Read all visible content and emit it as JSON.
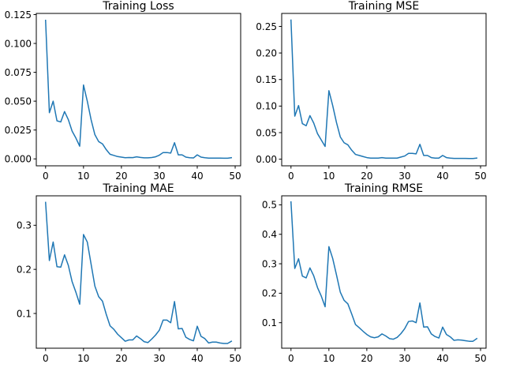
{
  "chart_data": [
    {
      "type": "line",
      "title": "Training Loss",
      "xlim": [
        -2.45,
        51.45
      ],
      "ylim": [
        -0.006,
        0.126
      ],
      "xticks": [
        0,
        10,
        20,
        30,
        40,
        50
      ],
      "xtick_labels": [
        "0",
        "10",
        "20",
        "30",
        "40",
        "50"
      ],
      "yticks": [
        0.0,
        0.025,
        0.05,
        0.075,
        0.1,
        0.125
      ],
      "ytick_labels": [
        "0.000",
        "0.025",
        "0.050",
        "0.075",
        "0.100",
        "0.125"
      ],
      "color": "#1f77b4",
      "x": [
        0,
        1,
        2,
        3,
        4,
        5,
        6,
        7,
        8,
        9,
        10,
        11,
        12,
        13,
        14,
        15,
        16,
        17,
        18,
        19,
        20,
        21,
        22,
        23,
        24,
        25,
        26,
        27,
        28,
        29,
        30,
        31,
        32,
        33,
        34,
        35,
        36,
        37,
        38,
        39,
        40,
        41,
        42,
        43,
        44,
        45,
        46,
        47,
        48,
        49
      ],
      "y": [
        0.12,
        0.04,
        0.05,
        0.033,
        0.032,
        0.041,
        0.034,
        0.024,
        0.018,
        0.011,
        0.064,
        0.05,
        0.034,
        0.021,
        0.015,
        0.013,
        0.008,
        0.004,
        0.003,
        0.002,
        0.0015,
        0.001,
        0.0012,
        0.0011,
        0.0018,
        0.0013,
        0.0009,
        0.0009,
        0.0012,
        0.0018,
        0.0032,
        0.0055,
        0.0055,
        0.005,
        0.014,
        0.0035,
        0.0035,
        0.0015,
        0.001,
        0.0008,
        0.0035,
        0.0015,
        0.001,
        0.0007,
        0.0007,
        0.0007,
        0.0007,
        0.0006,
        0.0006,
        0.001
      ]
    },
    {
      "type": "line",
      "title": "Training MSE",
      "xlim": [
        -2.45,
        51.45
      ],
      "ylim": [
        -0.0125,
        0.2745
      ],
      "xticks": [
        0,
        10,
        20,
        30,
        40,
        50
      ],
      "xtick_labels": [
        "0",
        "10",
        "20",
        "30",
        "40",
        "50"
      ],
      "yticks": [
        0.0,
        0.05,
        0.1,
        0.15,
        0.2,
        0.25
      ],
      "ytick_labels": [
        "0.00",
        "0.05",
        "0.10",
        "0.15",
        "0.20",
        "0.25"
      ],
      "color": "#1f77b4",
      "x": [
        0,
        1,
        2,
        3,
        4,
        5,
        6,
        7,
        8,
        9,
        10,
        11,
        12,
        13,
        14,
        15,
        16,
        17,
        18,
        19,
        20,
        21,
        22,
        23,
        24,
        25,
        26,
        27,
        28,
        29,
        30,
        31,
        32,
        33,
        34,
        35,
        36,
        37,
        38,
        39,
        40,
        41,
        42,
        43,
        44,
        45,
        46,
        47,
        48,
        49
      ],
      "y": [
        0.262,
        0.081,
        0.101,
        0.067,
        0.063,
        0.082,
        0.068,
        0.048,
        0.036,
        0.024,
        0.129,
        0.101,
        0.069,
        0.042,
        0.031,
        0.027,
        0.017,
        0.009,
        0.007,
        0.005,
        0.003,
        0.002,
        0.002,
        0.002,
        0.003,
        0.002,
        0.002,
        0.002,
        0.002,
        0.004,
        0.006,
        0.011,
        0.011,
        0.01,
        0.028,
        0.007,
        0.007,
        0.003,
        0.002,
        0.002,
        0.007,
        0.003,
        0.002,
        0.0015,
        0.0015,
        0.0015,
        0.0015,
        0.0012,
        0.0012,
        0.002
      ]
    },
    {
      "type": "line",
      "title": "Training MAE",
      "xlim": [
        -2.45,
        51.45
      ],
      "ylim": [
        0.0212,
        0.3668
      ],
      "xticks": [
        0,
        10,
        20,
        30,
        40,
        50
      ],
      "xtick_labels": [
        "0",
        "10",
        "20",
        "30",
        "40",
        "50"
      ],
      "yticks": [
        0.1,
        0.2,
        0.3
      ],
      "ytick_labels": [
        "0.1",
        "0.2",
        "0.3"
      ],
      "color": "#1f77b4",
      "x": [
        0,
        1,
        2,
        3,
        4,
        5,
        6,
        7,
        8,
        9,
        10,
        11,
        12,
        13,
        14,
        15,
        16,
        17,
        18,
        19,
        20,
        21,
        22,
        23,
        24,
        25,
        26,
        27,
        28,
        29,
        30,
        31,
        32,
        33,
        34,
        35,
        36,
        37,
        38,
        39,
        40,
        41,
        42,
        43,
        44,
        45,
        46,
        47,
        48,
        49
      ],
      "y": [
        0.352,
        0.22,
        0.262,
        0.206,
        0.205,
        0.233,
        0.209,
        0.172,
        0.148,
        0.121,
        0.279,
        0.262,
        0.212,
        0.162,
        0.138,
        0.128,
        0.098,
        0.072,
        0.064,
        0.053,
        0.045,
        0.037,
        0.04,
        0.04,
        0.049,
        0.043,
        0.036,
        0.034,
        0.042,
        0.051,
        0.062,
        0.085,
        0.085,
        0.079,
        0.127,
        0.065,
        0.066,
        0.046,
        0.041,
        0.038,
        0.071,
        0.048,
        0.043,
        0.033,
        0.035,
        0.035,
        0.033,
        0.032,
        0.032,
        0.037
      ]
    },
    {
      "type": "line",
      "title": "Training RMSE",
      "xlim": [
        -2.45,
        51.45
      ],
      "ylim": [
        0.0134,
        0.5306
      ],
      "xticks": [
        0,
        10,
        20,
        30,
        40,
        50
      ],
      "xtick_labels": [
        "0",
        "10",
        "20",
        "30",
        "40",
        "50"
      ],
      "yticks": [
        0.1,
        0.2,
        0.3,
        0.4,
        0.5
      ],
      "ytick_labels": [
        "0.1",
        "0.2",
        "0.3",
        "0.4",
        "0.5"
      ],
      "color": "#1f77b4",
      "x": [
        0,
        1,
        2,
        3,
        4,
        5,
        6,
        7,
        8,
        9,
        10,
        11,
        12,
        13,
        14,
        15,
        16,
        17,
        18,
        19,
        20,
        21,
        22,
        23,
        24,
        25,
        26,
        27,
        28,
        29,
        30,
        31,
        32,
        33,
        34,
        35,
        36,
        37,
        38,
        39,
        40,
        41,
        42,
        43,
        44,
        45,
        46,
        47,
        48,
        49
      ],
      "y": [
        0.51,
        0.284,
        0.317,
        0.258,
        0.252,
        0.286,
        0.259,
        0.219,
        0.19,
        0.154,
        0.358,
        0.318,
        0.262,
        0.204,
        0.176,
        0.164,
        0.13,
        0.094,
        0.083,
        0.071,
        0.06,
        0.052,
        0.049,
        0.052,
        0.062,
        0.055,
        0.046,
        0.044,
        0.05,
        0.063,
        0.08,
        0.104,
        0.106,
        0.1,
        0.167,
        0.085,
        0.086,
        0.062,
        0.053,
        0.048,
        0.085,
        0.06,
        0.052,
        0.04,
        0.042,
        0.041,
        0.039,
        0.037,
        0.037,
        0.046
      ]
    }
  ]
}
